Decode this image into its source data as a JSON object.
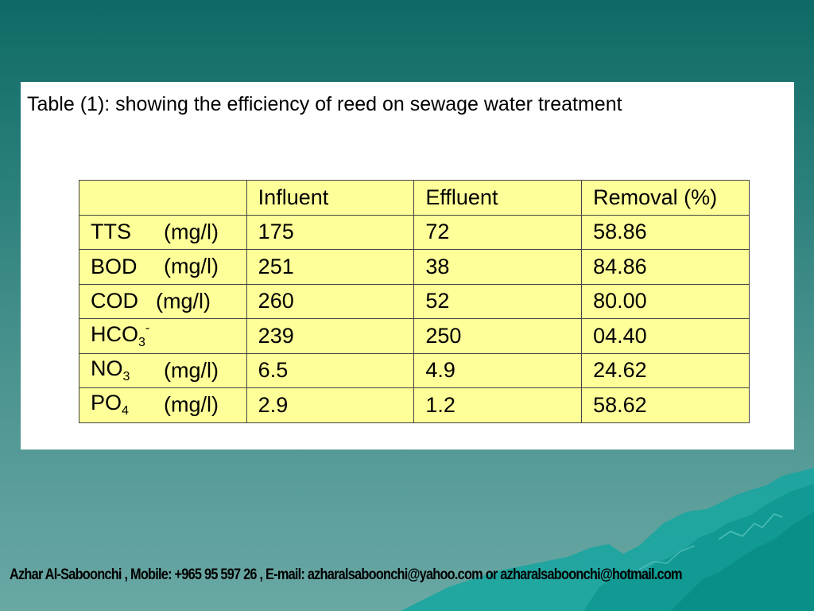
{
  "slide": {
    "caption": "Table (1): showing the efficiency of reed on sewage water treatment",
    "footer": "Azhar Al-Saboonchi , Mobile: +965 95 597 26 ,  E-mail: azharalsaboonchi@yahoo.com  or  azharalsaboonchi@hotmail.com"
  },
  "table": {
    "headers": [
      "",
      "Influent",
      "Effluent",
      "Removal (%)"
    ],
    "rows": [
      {
        "name": "TTS",
        "sub": "",
        "sup": "",
        "unit": "(mg/l)",
        "influent": "175",
        "effluent": "72",
        "removal": "58.86"
      },
      {
        "name": "BOD",
        "sub": "",
        "sup": "",
        "unit": "(mg/l)",
        "influent": "251",
        "effluent": "38",
        "removal": "84.86"
      },
      {
        "name": "COD",
        "sub": "",
        "sup": "",
        "unit": "(mg/l)",
        "influent": "260",
        "effluent": "52",
        "removal": "80.00"
      },
      {
        "name": "HCO",
        "sub": "3",
        "sup": "-",
        "unit": "",
        "influent": "239",
        "effluent": "250",
        "removal": "04.40"
      },
      {
        "name": "NO",
        "sub": "3",
        "sup": "",
        "unit": "(mg/l)",
        "influent": "6.5",
        "effluent": "4.9",
        "removal": "24.62"
      },
      {
        "name": "PO",
        "sub": "4",
        "sup": "",
        "unit": "(mg/l)",
        "influent": "2.9",
        "effluent": "1.2",
        "removal": "58.62"
      }
    ]
  },
  "colors": {
    "background_top": "#0e6a66",
    "background_bottom": "#6aa8a4",
    "table_fill": "#ffff99",
    "mountain": "#16a6a0"
  },
  "decoration": {
    "mountain": "teal-mountain-graphic"
  }
}
